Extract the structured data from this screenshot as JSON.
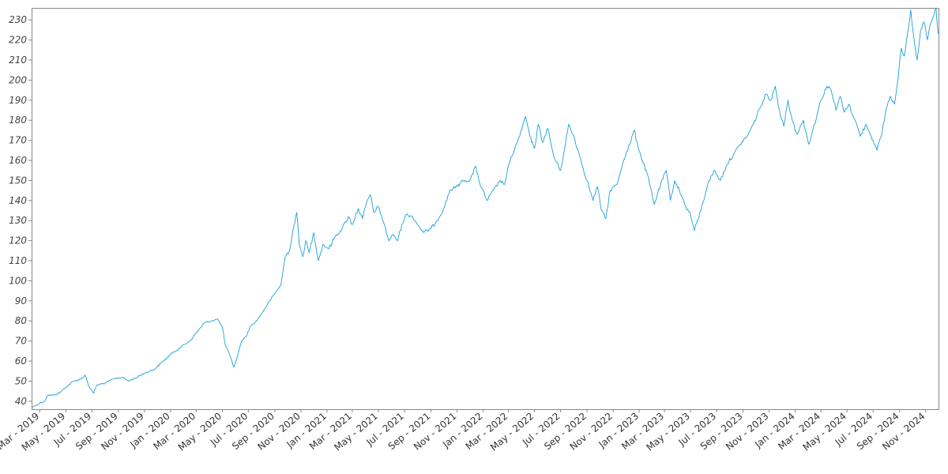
{
  "chart_data": {
    "type": "line",
    "title": "",
    "xlabel": "",
    "ylabel": "",
    "xlim": [
      "2019-02-10",
      "2024-12-01"
    ],
    "ylim": [
      36,
      236
    ],
    "y_ticks": [
      40,
      50,
      60,
      70,
      80,
      90,
      100,
      110,
      120,
      130,
      140,
      150,
      160,
      170,
      180,
      190,
      200,
      210,
      220,
      230
    ],
    "x_ticks": [
      {
        "date": "2019-03-01",
        "label": "Mar - 2019"
      },
      {
        "date": "2019-05-01",
        "label": "May - 2019"
      },
      {
        "date": "2019-07-01",
        "label": "Jul - 2019"
      },
      {
        "date": "2019-09-01",
        "label": "Sep - 2019"
      },
      {
        "date": "2019-11-01",
        "label": "Nov - 2019"
      },
      {
        "date": "2020-01-01",
        "label": "Jan - 2020"
      },
      {
        "date": "2020-03-01",
        "label": "Mar - 2020"
      },
      {
        "date": "2020-05-01",
        "label": "May - 2020"
      },
      {
        "date": "2020-07-01",
        "label": "Jul - 2020"
      },
      {
        "date": "2020-09-01",
        "label": "Sep - 2020"
      },
      {
        "date": "2020-11-01",
        "label": "Nov - 2020"
      },
      {
        "date": "2021-01-01",
        "label": "Jan - 2021"
      },
      {
        "date": "2021-03-01",
        "label": "Mar - 2021"
      },
      {
        "date": "2021-05-01",
        "label": "May - 2021"
      },
      {
        "date": "2021-07-01",
        "label": "Jul - 2021"
      },
      {
        "date": "2021-09-01",
        "label": "Sep - 2021"
      },
      {
        "date": "2021-11-01",
        "label": "Nov - 2021"
      },
      {
        "date": "2022-01-01",
        "label": "Jan - 2022"
      },
      {
        "date": "2022-03-01",
        "label": "Mar - 2022"
      },
      {
        "date": "2022-05-01",
        "label": "May - 2022"
      },
      {
        "date": "2022-07-01",
        "label": "Jul - 2022"
      },
      {
        "date": "2022-09-01",
        "label": "Sep - 2022"
      },
      {
        "date": "2022-11-01",
        "label": "Nov - 2022"
      },
      {
        "date": "2023-01-01",
        "label": "Jan - 2023"
      },
      {
        "date": "2023-03-01",
        "label": "Mar - 2023"
      },
      {
        "date": "2023-05-01",
        "label": "May - 2023"
      },
      {
        "date": "2023-07-01",
        "label": "Jul - 2023"
      },
      {
        "date": "2023-09-01",
        "label": "Sep - 2023"
      },
      {
        "date": "2023-11-01",
        "label": "Nov - 2023"
      },
      {
        "date": "2024-01-01",
        "label": "Jan - 2024"
      },
      {
        "date": "2024-03-01",
        "label": "Mar - 2024"
      },
      {
        "date": "2024-05-01",
        "label": "May - 2024"
      },
      {
        "date": "2024-07-01",
        "label": "Jul - 2024"
      },
      {
        "date": "2024-09-01",
        "label": "Sep - 2024"
      },
      {
        "date": "2024-11-01",
        "label": "Nov - 2024"
      }
    ],
    "grid": false,
    "legend": "none",
    "series": [
      {
        "color": "#1a9fd8",
        "points": [
          [
            "2019-02-11",
            37
          ],
          [
            "2019-02-20",
            38
          ],
          [
            "2019-03-01",
            39
          ],
          [
            "2019-03-12",
            40
          ],
          [
            "2019-03-20",
            43
          ],
          [
            "2019-04-01",
            43
          ],
          [
            "2019-04-15",
            44
          ],
          [
            "2019-05-01",
            47
          ],
          [
            "2019-05-20",
            50
          ],
          [
            "2019-06-05",
            51
          ],
          [
            "2019-06-15",
            53
          ],
          [
            "2019-06-25",
            47
          ],
          [
            "2019-07-05",
            44
          ],
          [
            "2019-07-12",
            48
          ],
          [
            "2019-08-01",
            49
          ],
          [
            "2019-08-20",
            51
          ],
          [
            "2019-09-10",
            52
          ],
          [
            "2019-09-25",
            50
          ],
          [
            "2019-10-15",
            52
          ],
          [
            "2019-11-01",
            54
          ],
          [
            "2019-11-25",
            56
          ],
          [
            "2019-12-15",
            60
          ],
          [
            "2020-01-05",
            64
          ],
          [
            "2020-01-25",
            67
          ],
          [
            "2020-02-15",
            70
          ],
          [
            "2020-03-05",
            75
          ],
          [
            "2020-03-20",
            79
          ],
          [
            "2020-04-05",
            80
          ],
          [
            "2020-04-20",
            81
          ],
          [
            "2020-05-01",
            77
          ],
          [
            "2020-05-08",
            68
          ],
          [
            "2020-05-20",
            62
          ],
          [
            "2020-05-28",
            57
          ],
          [
            "2020-06-05",
            62
          ],
          [
            "2020-06-15",
            70
          ],
          [
            "2020-06-25",
            72
          ],
          [
            "2020-07-05",
            77
          ],
          [
            "2020-07-20",
            80
          ],
          [
            "2020-08-05",
            85
          ],
          [
            "2020-08-20",
            90
          ],
          [
            "2020-09-05",
            95
          ],
          [
            "2020-09-15",
            98
          ],
          [
            "2020-09-25",
            112
          ],
          [
            "2020-10-05",
            115
          ],
          [
            "2020-10-15",
            127
          ],
          [
            "2020-10-22",
            134
          ],
          [
            "2020-10-28",
            118
          ],
          [
            "2020-11-05",
            112
          ],
          [
            "2020-11-12",
            120
          ],
          [
            "2020-11-20",
            114
          ],
          [
            "2020-12-01",
            124
          ],
          [
            "2020-12-12",
            110
          ],
          [
            "2020-12-22",
            118
          ],
          [
            "2021-01-05",
            116
          ],
          [
            "2021-01-20",
            122
          ],
          [
            "2021-02-05",
            126
          ],
          [
            "2021-02-20",
            132
          ],
          [
            "2021-03-01",
            128
          ],
          [
            "2021-03-15",
            136
          ],
          [
            "2021-03-25",
            131
          ],
          [
            "2021-04-05",
            140
          ],
          [
            "2021-04-12",
            143
          ],
          [
            "2021-04-20",
            134
          ],
          [
            "2021-05-01",
            137
          ],
          [
            "2021-05-15",
            128
          ],
          [
            "2021-05-25",
            120
          ],
          [
            "2021-06-05",
            123
          ],
          [
            "2021-06-15",
            120
          ],
          [
            "2021-06-25",
            128
          ],
          [
            "2021-07-05",
            133
          ],
          [
            "2021-07-20",
            132
          ],
          [
            "2021-08-01",
            128
          ],
          [
            "2021-08-15",
            124
          ],
          [
            "2021-09-01",
            126
          ],
          [
            "2021-09-15",
            130
          ],
          [
            "2021-10-01",
            136
          ],
          [
            "2021-10-15",
            145
          ],
          [
            "2021-11-01",
            147
          ],
          [
            "2021-11-15",
            150
          ],
          [
            "2021-12-01",
            150
          ],
          [
            "2021-12-15",
            157
          ],
          [
            "2021-12-25",
            148
          ],
          [
            "2022-01-10",
            140
          ],
          [
            "2022-01-25",
            145
          ],
          [
            "2022-02-10",
            150
          ],
          [
            "2022-02-20",
            148
          ],
          [
            "2022-03-05",
            160
          ],
          [
            "2022-03-20",
            168
          ],
          [
            "2022-04-01",
            175
          ],
          [
            "2022-04-10",
            182
          ],
          [
            "2022-04-20",
            172
          ],
          [
            "2022-05-01",
            166
          ],
          [
            "2022-05-10",
            178
          ],
          [
            "2022-05-20",
            169
          ],
          [
            "2022-06-01",
            176
          ],
          [
            "2022-06-15",
            162
          ],
          [
            "2022-07-01",
            155
          ],
          [
            "2022-07-10",
            165
          ],
          [
            "2022-07-20",
            178
          ],
          [
            "2022-08-01",
            172
          ],
          [
            "2022-08-15",
            162
          ],
          [
            "2022-09-01",
            150
          ],
          [
            "2022-09-15",
            140
          ],
          [
            "2022-09-25",
            147
          ],
          [
            "2022-10-05",
            135
          ],
          [
            "2022-10-15",
            131
          ],
          [
            "2022-10-25",
            145
          ],
          [
            "2022-11-10",
            148
          ],
          [
            "2022-11-25",
            160
          ],
          [
            "2022-12-10",
            168
          ],
          [
            "2022-12-20",
            175
          ],
          [
            "2023-01-05",
            162
          ],
          [
            "2023-01-20",
            153
          ],
          [
            "2023-02-05",
            138
          ],
          [
            "2023-02-20",
            148
          ],
          [
            "2023-03-05",
            155
          ],
          [
            "2023-03-15",
            140
          ],
          [
            "2023-03-25",
            150
          ],
          [
            "2023-04-05",
            145
          ],
          [
            "2023-04-20",
            137
          ],
          [
            "2023-05-01",
            133
          ],
          [
            "2023-05-10",
            125
          ],
          [
            "2023-05-25",
            135
          ],
          [
            "2023-06-10",
            148
          ],
          [
            "2023-06-25",
            155
          ],
          [
            "2023-07-10",
            150
          ],
          [
            "2023-07-25",
            158
          ],
          [
            "2023-08-10",
            163
          ],
          [
            "2023-08-25",
            168
          ],
          [
            "2023-09-10",
            172
          ],
          [
            "2023-09-25",
            178
          ],
          [
            "2023-10-10",
            186
          ],
          [
            "2023-10-25",
            193
          ],
          [
            "2023-11-05",
            190
          ],
          [
            "2023-11-15",
            197
          ],
          [
            "2023-11-25",
            185
          ],
          [
            "2023-12-05",
            177
          ],
          [
            "2023-12-15",
            190
          ],
          [
            "2023-12-25",
            180
          ],
          [
            "2024-01-05",
            173
          ],
          [
            "2024-01-20",
            180
          ],
          [
            "2024-02-01",
            168
          ],
          [
            "2024-02-15",
            178
          ],
          [
            "2024-03-01",
            190
          ],
          [
            "2024-03-15",
            197
          ],
          [
            "2024-03-25",
            195
          ],
          [
            "2024-04-05",
            185
          ],
          [
            "2024-04-15",
            192
          ],
          [
            "2024-04-25",
            184
          ],
          [
            "2024-05-05",
            188
          ],
          [
            "2024-05-20",
            180
          ],
          [
            "2024-06-01",
            172
          ],
          [
            "2024-06-15",
            178
          ],
          [
            "2024-07-01",
            170
          ],
          [
            "2024-07-10",
            165
          ],
          [
            "2024-07-20",
            172
          ],
          [
            "2024-08-01",
            186
          ],
          [
            "2024-08-10",
            192
          ],
          [
            "2024-08-20",
            188
          ],
          [
            "2024-08-28",
            200
          ],
          [
            "2024-09-05",
            216
          ],
          [
            "2024-09-12",
            212
          ],
          [
            "2024-09-20",
            224
          ],
          [
            "2024-09-27",
            235
          ],
          [
            "2024-10-05",
            220
          ],
          [
            "2024-10-12",
            210
          ],
          [
            "2024-10-20",
            225
          ],
          [
            "2024-10-28",
            229
          ],
          [
            "2024-11-05",
            220
          ],
          [
            "2024-11-12",
            228
          ],
          [
            "2024-11-20",
            232
          ],
          [
            "2024-11-25",
            236
          ],
          [
            "2024-11-30",
            223
          ]
        ]
      }
    ]
  }
}
